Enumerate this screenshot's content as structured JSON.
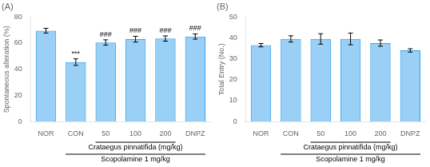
{
  "chart_data": [
    {
      "type": "bar",
      "title": "(A)",
      "y_label": "Spontaneous alteration (%)",
      "categories": [
        "NOR",
        "CON",
        "50",
        "100",
        "200",
        "DNPZ"
      ],
      "values": [
        69.5,
        45.5,
        60.5,
        63.0,
        63.5,
        65.0
      ],
      "errors": [
        1.8,
        2.5,
        2.0,
        2.2,
        2.0,
        2.0
      ],
      "ylim": [
        0,
        80
      ],
      "yticks": [
        0,
        20,
        40,
        60,
        80
      ],
      "grid": false,
      "annotations": [
        {
          "text": "***",
          "categories": [
            "CON"
          ]
        },
        {
          "text": "###",
          "categories": [
            "50"
          ]
        },
        {
          "text": "###",
          "categories": [
            "100"
          ]
        },
        {
          "text": "###",
          "categories": [
            "200"
          ]
        },
        {
          "text": "###",
          "categories": [
            "DNPZ"
          ]
        },
        {
          "text": "Crataegus pinnatifida (mg/kg)",
          "categories": [
            "50",
            "100",
            "200"
          ]
        },
        {
          "text": "Scopolamine 1 mg/kg",
          "categories": [
            "CON",
            "50",
            "100",
            "200",
            "DNPZ"
          ]
        }
      ]
    },
    {
      "type": "bar",
      "title": "(B)",
      "y_label": "Total Entry (No.)",
      "categories": [
        "NOR",
        "CON",
        "50",
        "100",
        "200",
        "DNPZ"
      ],
      "values": [
        36.5,
        39.5,
        39.5,
        39.5,
        37.5,
        34.0
      ],
      "errors": [
        0.8,
        1.5,
        2.5,
        2.8,
        1.5,
        0.8
      ],
      "ylim": [
        0,
        50
      ],
      "yticks": [
        0,
        10,
        20,
        30,
        40,
        50
      ],
      "grid": false,
      "annotations": [
        {
          "text": "Crataegus pinnatifida (mg/kg)",
          "categories": [
            "50",
            "100",
            "200"
          ]
        },
        {
          "text": "Scopolamine 1 mg/kg",
          "categories": [
            "CON",
            "50",
            "100",
            "200",
            "DNPZ"
          ]
        }
      ]
    }
  ]
}
